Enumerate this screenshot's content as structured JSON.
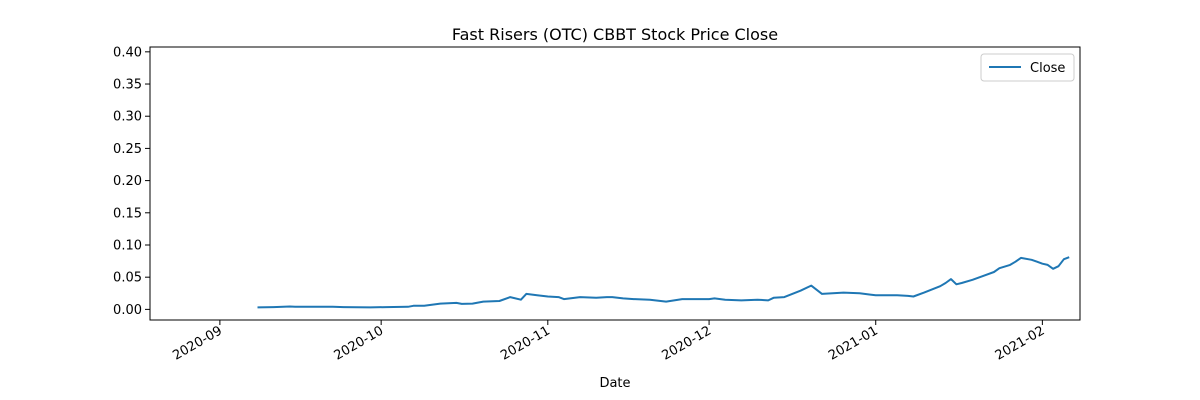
{
  "chart_data": {
    "type": "line",
    "title": "Fast Risers (OTC) CBBT Stock Price Close",
    "xlabel": "Date",
    "ylabel": "",
    "xlim": [
      "2020-08-19",
      "2021-02-08"
    ],
    "ylim": [
      -0.0165,
      0.4075
    ],
    "xticks": [
      {
        "date": "2020-09-01",
        "label": "2020-09"
      },
      {
        "date": "2020-10-01",
        "label": "2020-10"
      },
      {
        "date": "2020-11-01",
        "label": "2020-11"
      },
      {
        "date": "2020-12-01",
        "label": "2020-12"
      },
      {
        "date": "2021-01-01",
        "label": "2021-01"
      },
      {
        "date": "2021-02-01",
        "label": "2021-02"
      }
    ],
    "yticks": [
      {
        "value": 0.0,
        "label": "0.00"
      },
      {
        "value": 0.05,
        "label": "0.05"
      },
      {
        "value": 0.1,
        "label": "0.10"
      },
      {
        "value": 0.15,
        "label": "0.15"
      },
      {
        "value": 0.2,
        "label": "0.20"
      },
      {
        "value": 0.25,
        "label": "0.25"
      },
      {
        "value": 0.3,
        "label": "0.30"
      },
      {
        "value": 0.35,
        "label": "0.35"
      },
      {
        "value": 0.4,
        "label": "0.40"
      }
    ],
    "grid": false,
    "legend_position": "top-right",
    "series": [
      {
        "name": "Close",
        "color": "#1f77b4",
        "points": [
          [
            "2020-09-08",
            0.003
          ],
          [
            "2020-09-11",
            0.0035
          ],
          [
            "2020-09-14",
            0.0045
          ],
          [
            "2020-09-15",
            0.004
          ],
          [
            "2020-09-18",
            0.004
          ],
          [
            "2020-09-22",
            0.004
          ],
          [
            "2020-09-24",
            0.0035
          ],
          [
            "2020-09-29",
            0.003
          ],
          [
            "2020-10-02",
            0.0035
          ],
          [
            "2020-10-06",
            0.004
          ],
          [
            "2020-10-07",
            0.0055
          ],
          [
            "2020-10-09",
            0.0055
          ],
          [
            "2020-10-12",
            0.009
          ],
          [
            "2020-10-15",
            0.01
          ],
          [
            "2020-10-16",
            0.0085
          ],
          [
            "2020-10-18",
            0.009
          ],
          [
            "2020-10-20",
            0.012
          ],
          [
            "2020-10-23",
            0.013
          ],
          [
            "2020-10-25",
            0.019
          ],
          [
            "2020-10-27",
            0.015
          ],
          [
            "2020-10-28",
            0.024
          ],
          [
            "2020-10-30",
            0.022
          ],
          [
            "2020-11-01",
            0.02
          ],
          [
            "2020-11-03",
            0.019
          ],
          [
            "2020-11-04",
            0.016
          ],
          [
            "2020-11-07",
            0.019
          ],
          [
            "2020-11-10",
            0.018
          ],
          [
            "2020-11-12",
            0.019
          ],
          [
            "2020-11-13",
            0.019
          ],
          [
            "2020-11-15",
            0.017
          ],
          [
            "2020-11-17",
            0.016
          ],
          [
            "2020-11-20",
            0.015
          ],
          [
            "2020-11-22",
            0.013
          ],
          [
            "2020-11-23",
            0.012
          ],
          [
            "2020-11-26",
            0.016
          ],
          [
            "2020-11-29",
            0.016
          ],
          [
            "2020-12-01",
            0.016
          ],
          [
            "2020-12-02",
            0.017
          ],
          [
            "2020-12-04",
            0.015
          ],
          [
            "2020-12-07",
            0.014
          ],
          [
            "2020-12-10",
            0.015
          ],
          [
            "2020-12-12",
            0.014
          ],
          [
            "2020-12-13",
            0.018
          ],
          [
            "2020-12-15",
            0.019
          ],
          [
            "2020-12-18",
            0.029
          ],
          [
            "2020-12-20",
            0.037
          ],
          [
            "2020-12-22",
            0.024
          ],
          [
            "2020-12-24",
            0.025
          ],
          [
            "2020-12-26",
            0.026
          ],
          [
            "2020-12-29",
            0.025
          ],
          [
            "2020-12-31",
            0.023
          ],
          [
            "2021-01-01",
            0.022
          ],
          [
            "2021-01-03",
            0.022
          ],
          [
            "2021-01-05",
            0.022
          ],
          [
            "2021-01-07",
            0.021
          ],
          [
            "2021-01-08",
            0.02
          ],
          [
            "2021-01-10",
            0.026
          ],
          [
            "2021-01-13",
            0.036
          ],
          [
            "2021-01-14",
            0.041
          ],
          [
            "2021-01-15",
            0.047
          ],
          [
            "2021-01-16",
            0.039
          ],
          [
            "2021-01-17",
            0.041
          ],
          [
            "2021-01-19",
            0.046
          ],
          [
            "2021-01-21",
            0.052
          ],
          [
            "2021-01-23",
            0.058
          ],
          [
            "2021-01-24",
            0.064
          ],
          [
            "2021-01-26",
            0.069
          ],
          [
            "2021-01-27",
            0.074
          ],
          [
            "2021-01-28",
            0.08
          ],
          [
            "2021-01-30",
            0.077
          ],
          [
            "2021-01-31",
            0.074
          ],
          [
            "2021-02-01",
            0.071
          ],
          [
            "2021-02-02",
            0.069
          ],
          [
            "2021-02-03",
            0.063
          ],
          [
            "2021-02-04",
            0.067
          ],
          [
            "2021-02-05",
            0.078
          ],
          [
            "2021-02-06",
            0.081
          ]
        ]
      }
    ]
  }
}
